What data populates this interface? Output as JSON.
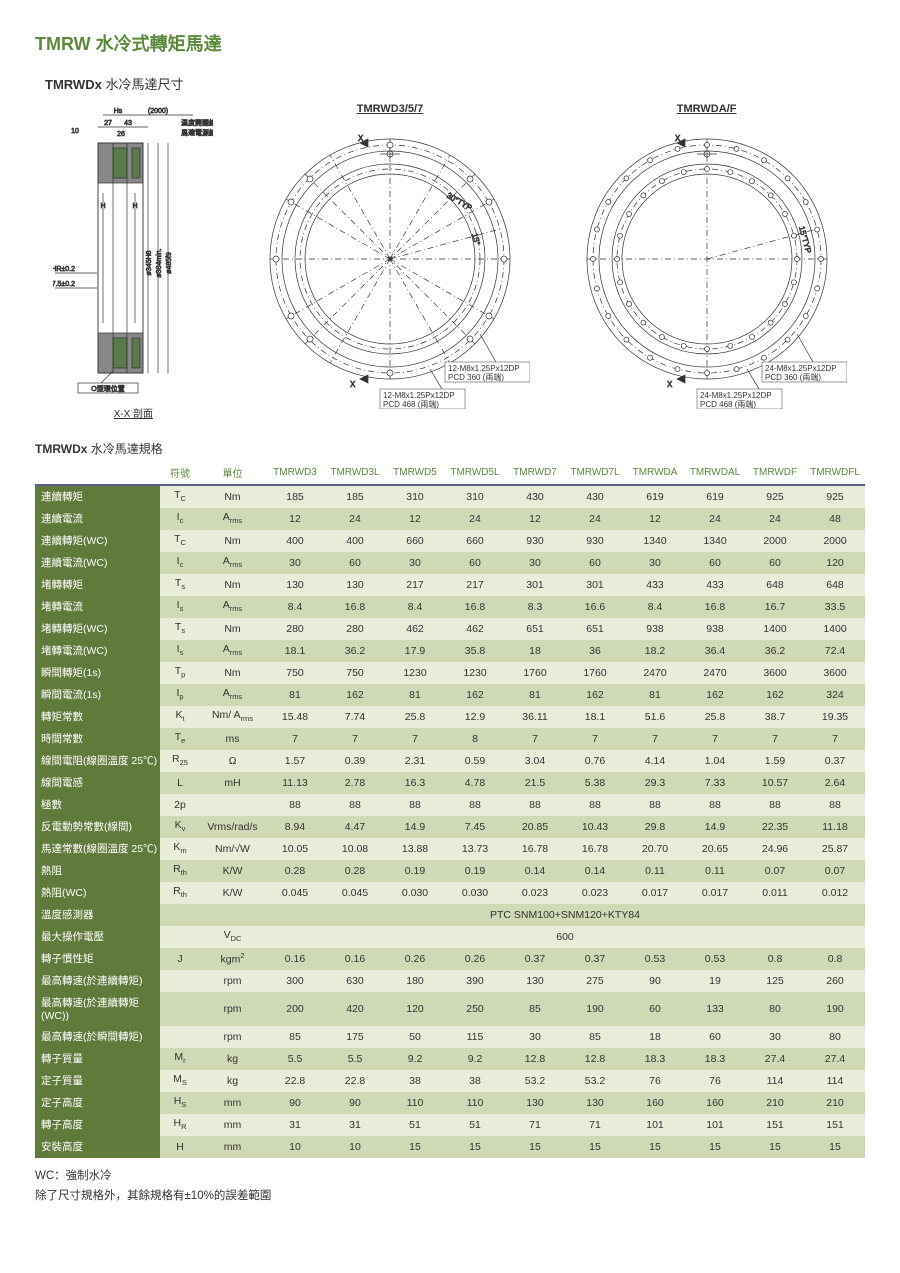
{
  "title_main": "TMRW  水冷式轉矩馬達",
  "title_sub_bold": "TMRWDx",
  "title_sub_light": "水冷馬達尺寸",
  "diagram_labels": {
    "section": "X-X 剖面",
    "left": "TMRWD3/5/7",
    "right": "TMRWDA/F",
    "oring": "O型環位置",
    "temp_line": "温度開關線",
    "power_line": "馬達電源線",
    "hole1": "12-M8x1.25Px12DP",
    "pcd1": "PCD 360 (兩端)",
    "hole2": "12-M8x1.25Px12DP",
    "pcd2": "PCD 468 (兩端)",
    "hole3": "24-M8x1.25Px12DP",
    "pcd3": "PCD 360 (兩端)",
    "hole4": "24-M8x1.25Px12DP",
    "pcd4": "PCD 468 (兩端)",
    "dim_10": "10",
    "dim_27": "27",
    "dim_43": "43",
    "dim_26": "26",
    "dim_2000": "(2000)",
    "dim_hs": "Hs",
    "dim_h": "H",
    "dim_hr02": "HR±0.2",
    "dim_375": "37.5±0.2",
    "dim_345": "ø345H8",
    "dim_384": "ø384min.",
    "dim_485": "ø485f9",
    "ang_30": "30°TYP",
    "ang_15": "15°",
    "ang_15typ": "15°TYP",
    "x": "X"
  },
  "spec_title_bold": "TMRWDx",
  "spec_title_light": "水冷馬達規格",
  "columns": [
    "符號",
    "單位",
    "TMRWD3",
    "TMRWD3L",
    "TMRWD5",
    "TMRWD5L",
    "TMRWD7",
    "TMRWD7L",
    "TMRWDA",
    "TMRWDAL",
    "TMRWDF",
    "TMRWDFL"
  ],
  "col_widths": {
    "param": 125,
    "sym": 40,
    "unit": 65,
    "val": 60
  },
  "colors": {
    "header_text": "#5b8a3c",
    "header_border": "#5b5a8e",
    "param_bg": "#5f7a3a",
    "even_bg": "#e8ecd9",
    "odd_bg": "#cfd9b5"
  },
  "rows": [
    {
      "param": "連續轉矩",
      "sym": "T<sub>C</sub>",
      "unit": "Nm",
      "vals": [
        "185",
        "185",
        "310",
        "310",
        "430",
        "430",
        "619",
        "619",
        "925",
        "925"
      ]
    },
    {
      "param": "連續電流",
      "sym": "I<sub>c</sub>",
      "unit": "A<sub>rms</sub>",
      "vals": [
        "12",
        "24",
        "12",
        "24",
        "12",
        "24",
        "12",
        "24",
        "24",
        "48"
      ]
    },
    {
      "param": "連續轉矩(WC)",
      "sym": "T<sub>C</sub>",
      "unit": "Nm",
      "vals": [
        "400",
        "400",
        "660",
        "660",
        "930",
        "930",
        "1340",
        "1340",
        "2000",
        "2000"
      ]
    },
    {
      "param": "連續電流(WC)",
      "sym": "I<sub>c</sub>",
      "unit": "A<sub>rms</sub>",
      "vals": [
        "30",
        "60",
        "30",
        "60",
        "30",
        "60",
        "30",
        "60",
        "60",
        "120"
      ]
    },
    {
      "param": "堵轉轉矩",
      "sym": "T<sub>s</sub>",
      "unit": "Nm",
      "vals": [
        "130",
        "130",
        "217",
        "217",
        "301",
        "301",
        "433",
        "433",
        "648",
        "648"
      ]
    },
    {
      "param": "堵轉電流",
      "sym": "I<sub>s</sub>",
      "unit": "A<sub>rms</sub>",
      "vals": [
        "8.4",
        "16.8",
        "8.4",
        "16.8",
        "8.3",
        "16.6",
        "8.4",
        "16.8",
        "16.7",
        "33.5"
      ]
    },
    {
      "param": "堵轉轉矩(WC)",
      "sym": "T<sub>s</sub>",
      "unit": "Nm",
      "vals": [
        "280",
        "280",
        "462",
        "462",
        "651",
        "651",
        "938",
        "938",
        "1400",
        "1400"
      ]
    },
    {
      "param": "堵轉電流(WC)",
      "sym": "I<sub>s</sub>",
      "unit": "A<sub>rms</sub>",
      "vals": [
        "18.1",
        "36.2",
        "17.9",
        "35.8",
        "18",
        "36",
        "18.2",
        "36.4",
        "36.2",
        "72.4"
      ]
    },
    {
      "param": "瞬間轉矩(1s)",
      "sym": "T<sub>p</sub>",
      "unit": "Nm",
      "vals": [
        "750",
        "750",
        "1230",
        "1230",
        "1760",
        "1760",
        "2470",
        "2470",
        "3600",
        "3600"
      ]
    },
    {
      "param": "瞬間電流(1s)",
      "sym": "I<sub>p</sub>",
      "unit": "A<sub>rms</sub>",
      "vals": [
        "81",
        "162",
        "81",
        "162",
        "81",
        "162",
        "81",
        "162",
        "162",
        "324"
      ]
    },
    {
      "param": "轉矩常數",
      "sym": "K<sub>t</sub>",
      "unit": "Nm/ A<sub>rms</sub>",
      "vals": [
        "15.48",
        "7.74",
        "25.8",
        "12.9",
        "36.11",
        "18.1",
        "51.6",
        "25.8",
        "38.7",
        "19.35"
      ]
    },
    {
      "param": "時間常數",
      "sym": "T<sub>e</sub>",
      "unit": "ms",
      "vals": [
        "7",
        "7",
        "7",
        "8",
        "7",
        "7",
        "7",
        "7",
        "7",
        "7"
      ]
    },
    {
      "param": "線間電阻(線圈溫度 25℃)",
      "sym": "R<sub>25</sub>",
      "unit": "Ω",
      "vals": [
        "1.57",
        "0.39",
        "2.31",
        "0.59",
        "3.04",
        "0.76",
        "4.14",
        "1.04",
        "1.59",
        "0.37"
      ]
    },
    {
      "param": "線間電感",
      "sym": "L",
      "unit": "mH",
      "vals": [
        "11.13",
        "2.78",
        "16.3",
        "4.78",
        "21.5",
        "5.38",
        "29.3",
        "7.33",
        "10.57",
        "2.64"
      ]
    },
    {
      "param": "極數",
      "sym": "2p",
      "unit": "",
      "vals": [
        "88",
        "88",
        "88",
        "88",
        "88",
        "88",
        "88",
        "88",
        "88",
        "88"
      ]
    },
    {
      "param": "反電動勢常數(線間)",
      "sym": "K<sub>v</sub>",
      "unit": "Vrms/rad/s",
      "vals": [
        "8.94",
        "4.47",
        "14.9",
        "7.45",
        "20.85",
        "10.43",
        "29.8",
        "14.9",
        "22.35",
        "11.18"
      ]
    },
    {
      "param": "馬達常數(線圈溫度 25℃)",
      "sym": "K<sub>m</sub>",
      "unit": "Nm/√W",
      "vals": [
        "10.05",
        "10.08",
        "13.88",
        "13.73",
        "16.78",
        "16.78",
        "20.70",
        "20.65",
        "24.96",
        "25.87"
      ]
    },
    {
      "param": "熱阻",
      "sym": "R<sub>th</sub>",
      "unit": "K/W",
      "vals": [
        "0.28",
        "0.28",
        "0.19",
        "0.19",
        "0.14",
        "0.14",
        "0.11",
        "0.11",
        "0.07",
        "0.07"
      ]
    },
    {
      "param": "熱阻(WC)",
      "sym": "R<sub>th</sub>",
      "unit": "K/W",
      "vals": [
        "0.045",
        "0.045",
        "0.030",
        "0.030",
        "0.023",
        "0.023",
        "0.017",
        "0.017",
        "0.011",
        "0.012"
      ]
    },
    {
      "param": "溫度感測器",
      "sym": "",
      "unit": "",
      "span": "PTC SNM100+SNM120+KTY84"
    },
    {
      "param": "最大操作電壓",
      "sym": "",
      "unit": "V<sub>DC</sub>",
      "span": "600"
    },
    {
      "param": "轉子慣性矩",
      "sym": "J",
      "unit": "kgm<sup>2</sup>",
      "vals": [
        "0.16",
        "0.16",
        "0.26",
        "0.26",
        "0.37",
        "0.37",
        "0.53",
        "0.53",
        "0.8",
        "0.8"
      ]
    },
    {
      "param": "最高轉速(於連續轉矩)",
      "sym": "",
      "unit": "rpm",
      "vals": [
        "300",
        "630",
        "180",
        "390",
        "130",
        "275",
        "90",
        "19",
        "125",
        "260"
      ]
    },
    {
      "param": "最高轉速(於連續轉矩(WC))",
      "sym": "",
      "unit": "rpm",
      "vals": [
        "200",
        "420",
        "120",
        "250",
        "85",
        "190",
        "60",
        "133",
        "80",
        "190"
      ]
    },
    {
      "param": "最高轉速(於瞬間轉矩)",
      "sym": "",
      "unit": "rpm",
      "vals": [
        "85",
        "175",
        "50",
        "115",
        "30",
        "85",
        "18",
        "60",
        "30",
        "80"
      ]
    },
    {
      "param": "轉子質量",
      "sym": "M<sub>r</sub>",
      "unit": "kg",
      "vals": [
        "5.5",
        "5.5",
        "9.2",
        "9.2",
        "12.8",
        "12.8",
        "18.3",
        "18.3",
        "27.4",
        "27.4"
      ]
    },
    {
      "param": "定子質量",
      "sym": "M<sub>S</sub>",
      "unit": "kg",
      "vals": [
        "22.8",
        "22.8",
        "38",
        "38",
        "53.2",
        "53.2",
        "76",
        "76",
        "114",
        "114"
      ]
    },
    {
      "param": "定子高度",
      "sym": "H<sub>S</sub>",
      "unit": "mm",
      "vals": [
        "90",
        "90",
        "110",
        "110",
        "130",
        "130",
        "160",
        "160",
        "210",
        "210"
      ]
    },
    {
      "param": "轉子高度",
      "sym": "H<sub>R</sub>",
      "unit": "mm",
      "vals": [
        "31",
        "31",
        "51",
        "51",
        "71",
        "71",
        "101",
        "101",
        "151",
        "151"
      ]
    },
    {
      "param": "安裝高度",
      "sym": "H",
      "unit": "mm",
      "vals": [
        "10",
        "10",
        "15",
        "15",
        "15",
        "15",
        "15",
        "15",
        "15",
        "15"
      ]
    }
  ],
  "note1": "WC：強制水冷",
  "note2": "除了尺寸規格外，其餘規格有±10%的誤差範圍"
}
